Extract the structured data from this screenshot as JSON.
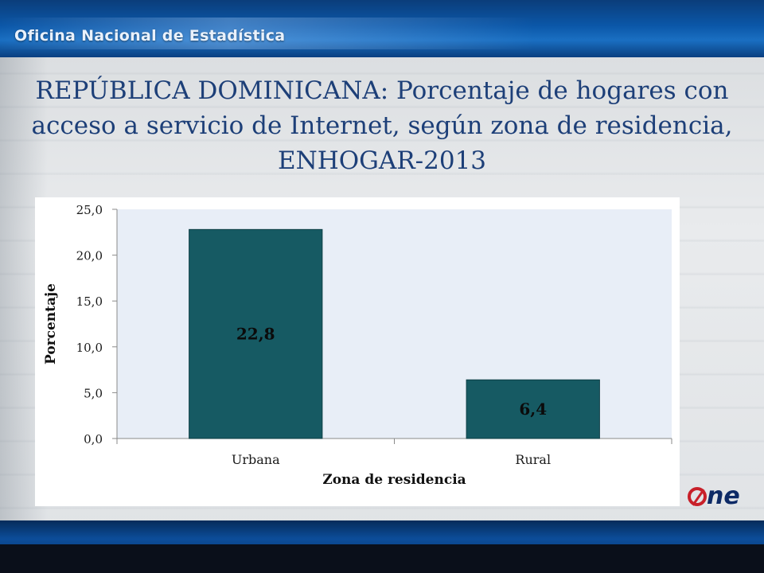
{
  "header": {
    "org_name": "Oficina Nacional de Estadística"
  },
  "slide": {
    "title_line1": "REPÚBLICA DOMINICANA: Porcentaje de hogares con",
    "title_line2": "acceso a servicio de Internet, según zona de residencia,",
    "title_line3": "ENHOGAR-2013"
  },
  "logo": {
    "text": "ne",
    "icon": "zero-slash-icon"
  },
  "colors": {
    "bar": "#165a63",
    "plot_bg": "#e8eef7",
    "title": "#1d3f78"
  },
  "chart_data": {
    "type": "bar",
    "categories": [
      "Urbana",
      "Rural"
    ],
    "values": [
      22.8,
      6.4
    ],
    "data_labels": [
      "22,8",
      "6,4"
    ],
    "xlabel": "Zona de residencia",
    "ylabel": "Porcentaje",
    "ylim": [
      0,
      25
    ],
    "yticks": [
      0,
      5,
      10,
      15,
      20,
      25
    ],
    "ytick_labels": [
      "0,0",
      "5,0",
      "10,0",
      "15,0",
      "20,0",
      "25,0"
    ],
    "grid": false,
    "legend": "none"
  }
}
